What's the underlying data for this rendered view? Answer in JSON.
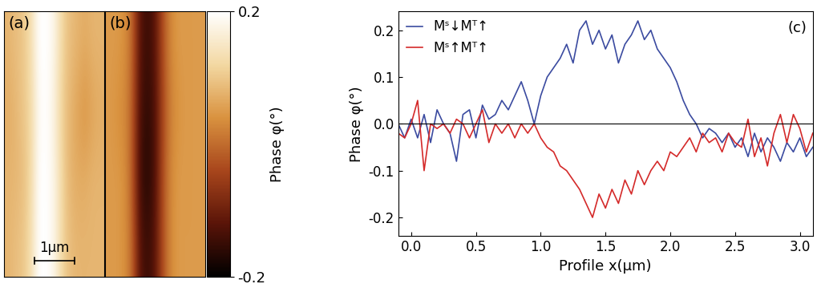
{
  "chart_data": [
    {
      "type": "image",
      "panel_label": "(a)",
      "tick_labels": false,
      "x_size": 2.5,
      "y_size": 6.6,
      "scale_bar": {
        "length": 1,
        "label": "1µm"
      },
      "colorbar_range": [
        -0.2,
        0.2
      ],
      "cells": [
        [
          0.08,
          0.09,
          0.1,
          0.13,
          0.2,
          0.2,
          0.18,
          0.12,
          0.09,
          0.08,
          0.07,
          0.08,
          0.08
        ],
        [
          0.07,
          0.08,
          0.1,
          0.12,
          0.19,
          0.2,
          0.17,
          0.11,
          0.08,
          0.06,
          0.04,
          0.06,
          0.07
        ],
        [
          0.08,
          0.08,
          0.09,
          0.12,
          0.2,
          0.2,
          0.18,
          0.12,
          0.08,
          0.07,
          0.07,
          0.08,
          0.08
        ],
        [
          0.08,
          0.09,
          0.1,
          0.13,
          0.2,
          0.2,
          0.18,
          0.12,
          0.09,
          0.08,
          0.08,
          0.08,
          0.08
        ]
      ]
    },
    {
      "type": "image",
      "panel_label": "(b)",
      "tick_labels": false,
      "x_size": 2.5,
      "y_size": 6.6,
      "colorbar_range": [
        -0.2,
        0.2
      ],
      "colorbar_ticks": [
        -0.2,
        0.2
      ],
      "colorbar_label": "Phase φ(°)",
      "cells": [
        [
          0.05,
          0.05,
          0.04,
          0.0,
          -0.12,
          -0.15,
          -0.12,
          -0.03,
          0.03,
          0.05,
          0.05,
          0.05,
          0.05
        ],
        [
          0.05,
          0.04,
          0.03,
          -0.01,
          -0.13,
          -0.16,
          -0.13,
          -0.04,
          0.02,
          0.04,
          0.05,
          0.05,
          0.05
        ],
        [
          0.05,
          0.05,
          0.04,
          -0.01,
          -0.14,
          -0.17,
          -0.13,
          -0.03,
          0.03,
          0.05,
          0.05,
          0.05,
          0.05
        ],
        [
          0.05,
          0.05,
          0.04,
          0.0,
          -0.12,
          -0.15,
          -0.12,
          -0.03,
          0.03,
          0.05,
          0.05,
          0.05,
          0.05
        ]
      ]
    },
    {
      "type": "line",
      "panel_label": "(c)",
      "x_label": "Profile x(µm)",
      "y_label": "Phase φ(°)",
      "xlim": [
        -0.1,
        3.1
      ],
      "xticks": [
        0.0,
        0.5,
        1.0,
        1.5,
        2.0,
        2.5,
        3.0
      ],
      "ylim": [
        -0.24,
        0.24
      ],
      "yticks": [
        -0.2,
        -0.1,
        0.0,
        0.1,
        0.2
      ],
      "zero_line": 0.0,
      "legend": "upper left",
      "x": [
        -0.1,
        -0.05,
        0.0,
        0.05,
        0.1,
        0.15,
        0.2,
        0.25,
        0.3,
        0.35,
        0.4,
        0.45,
        0.5,
        0.55,
        0.6,
        0.65,
        0.7,
        0.75,
        0.8,
        0.85,
        0.9,
        0.95,
        1.0,
        1.05,
        1.1,
        1.15,
        1.2,
        1.25,
        1.3,
        1.35,
        1.4,
        1.45,
        1.5,
        1.55,
        1.6,
        1.65,
        1.7,
        1.75,
        1.8,
        1.85,
        1.9,
        1.95,
        2.0,
        2.05,
        2.1,
        2.15,
        2.2,
        2.25,
        2.3,
        2.35,
        2.4,
        2.45,
        2.5,
        2.55,
        2.6,
        2.65,
        2.7,
        2.75,
        2.8,
        2.85,
        2.9,
        2.95,
        3.0,
        3.05,
        3.1
      ],
      "series": [
        {
          "name": "Mˢ↓Mᵀ↑",
          "color": "#3b4ba0",
          "values": [
            0.0,
            -0.03,
            0.01,
            -0.03,
            0.02,
            -0.04,
            0.03,
            0.0,
            -0.02,
            -0.08,
            0.02,
            0.03,
            -0.03,
            0.04,
            0.01,
            0.02,
            0.05,
            0.03,
            0.06,
            0.09,
            0.05,
            0.0,
            0.06,
            0.1,
            0.12,
            0.14,
            0.17,
            0.13,
            0.2,
            0.22,
            0.17,
            0.2,
            0.16,
            0.19,
            0.13,
            0.17,
            0.19,
            0.22,
            0.18,
            0.2,
            0.16,
            0.14,
            0.12,
            0.09,
            0.05,
            0.02,
            0.0,
            -0.03,
            -0.01,
            -0.02,
            -0.04,
            -0.02,
            -0.05,
            -0.03,
            -0.07,
            -0.02,
            -0.06,
            -0.03,
            -0.05,
            -0.08,
            -0.04,
            -0.06,
            -0.03,
            -0.07,
            -0.05
          ]
        },
        {
          "name": "Mˢ↑Mᵀ↑",
          "color": "#d42a2a",
          "values": [
            -0.02,
            -0.03,
            0.0,
            0.05,
            -0.1,
            0.0,
            -0.01,
            0.0,
            -0.02,
            0.01,
            0.0,
            -0.03,
            0.0,
            0.03,
            -0.04,
            0.0,
            -0.02,
            0.0,
            -0.03,
            0.0,
            -0.02,
            0.0,
            -0.03,
            -0.05,
            -0.06,
            -0.09,
            -0.1,
            -0.12,
            -0.14,
            -0.17,
            -0.2,
            -0.15,
            -0.18,
            -0.14,
            -0.17,
            -0.12,
            -0.15,
            -0.1,
            -0.13,
            -0.1,
            -0.08,
            -0.1,
            -0.06,
            -0.07,
            -0.05,
            -0.03,
            -0.06,
            -0.02,
            -0.04,
            -0.03,
            -0.06,
            -0.02,
            -0.04,
            -0.05,
            0.01,
            -0.07,
            -0.03,
            -0.09,
            -0.02,
            0.02,
            -0.04,
            0.02,
            -0.01,
            -0.06,
            -0.02
          ]
        }
      ]
    }
  ]
}
